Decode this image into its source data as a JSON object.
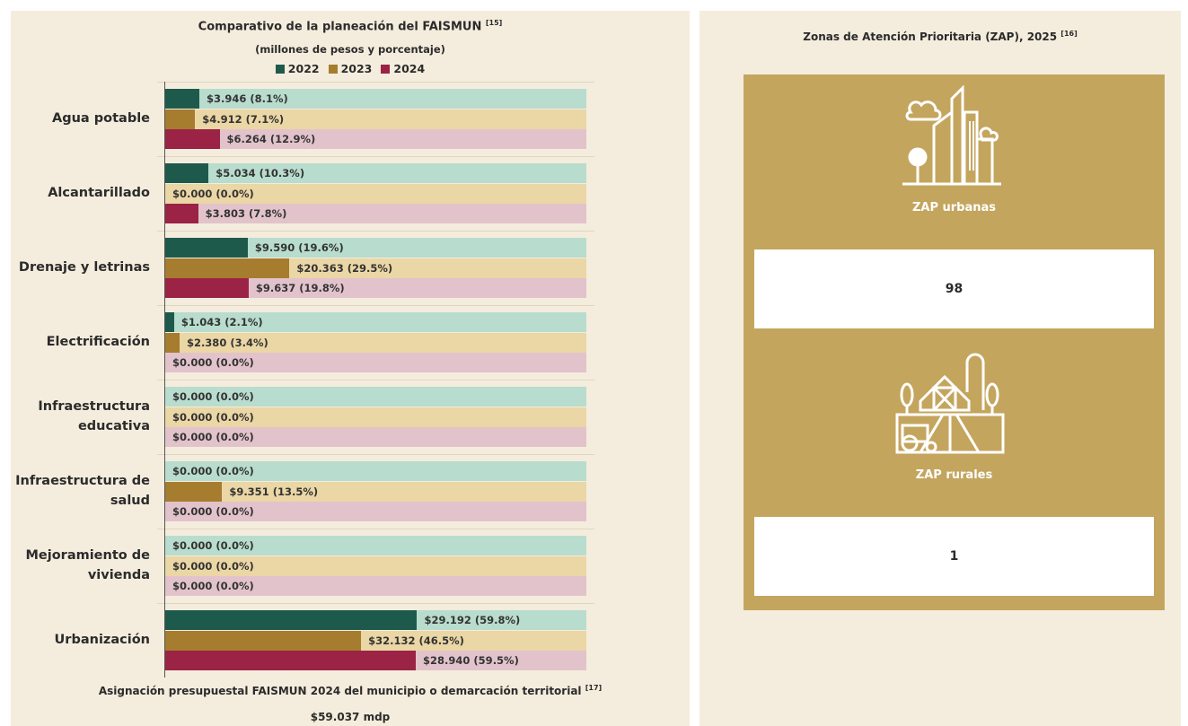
{
  "chart_data": {
    "type": "bar",
    "orientation": "horizontal",
    "title": "Comparativo de la planeación del FAISMUN",
    "title_ref": "[15]",
    "subtitle": "(millones de pesos y porcentaje)",
    "categories": [
      "Agua potable",
      "Alcantarillado",
      "Drenaje y letrinas",
      "Electrificación",
      "Infraestructura educativa",
      "Infraestructura de salud",
      "Mejoramiento de vivienda",
      "Urbanización"
    ],
    "xlim": [
      0,
      100
    ],
    "series": [
      {
        "name": "2022",
        "color": "#1e5a4c",
        "track": "#b8dccd",
        "values": [
          8.1,
          10.3,
          19.6,
          2.1,
          0,
          0,
          0,
          59.8
        ],
        "value_labels": [
          "$3.946 (8.1%)",
          "$5.034 (10.3%)",
          "$9.590 (19.6%)",
          "$1.043 (2.1%)",
          "$0.000 (0.0%)",
          "$0.000 (0.0%)",
          "$0.000 (0.0%)",
          "$29.192 (59.8%)"
        ]
      },
      {
        "name": "2023",
        "color": "#a67c2e",
        "track": "#ebd6a5",
        "values": [
          7.1,
          0,
          29.5,
          3.4,
          0,
          13.5,
          0,
          46.5
        ],
        "value_labels": [
          "$4.912 (7.1%)",
          "$0.000 (0.0%)",
          "$20.363 (29.5%)",
          "$2.380 (3.4%)",
          "$0.000 (0.0%)",
          "$9.351 (13.5%)",
          "$0.000 (0.0%)",
          "$32.132 (46.5%)"
        ]
      },
      {
        "name": "2024",
        "color": "#9b2345",
        "track": "#e2c3cb",
        "values": [
          12.9,
          7.8,
          19.8,
          0,
          0,
          0,
          0,
          59.5
        ],
        "value_labels": [
          "$6.264 (12.9%)",
          "$3.803 (7.8%)",
          "$9.637 (19.8%)",
          "$0.000 (0.0%)",
          "$0.000 (0.0%)",
          "$0.000 (0.0%)",
          "$0.000 (0.0%)",
          "$28.940 (59.5%)"
        ]
      }
    ]
  },
  "footer": {
    "text": "Asignación presupuestal FAISMUN 2024 del municipio o demarcación territorial",
    "ref": "[17]",
    "value": "$59.037 mdp"
  },
  "zap": {
    "title": "Zonas de Atención Prioritaria (ZAP), 2025",
    "title_ref": "[16]",
    "urban_label": "ZAP urbanas",
    "urban_value": 98,
    "rural_label": "ZAP rurales",
    "rural_value": 1
  }
}
